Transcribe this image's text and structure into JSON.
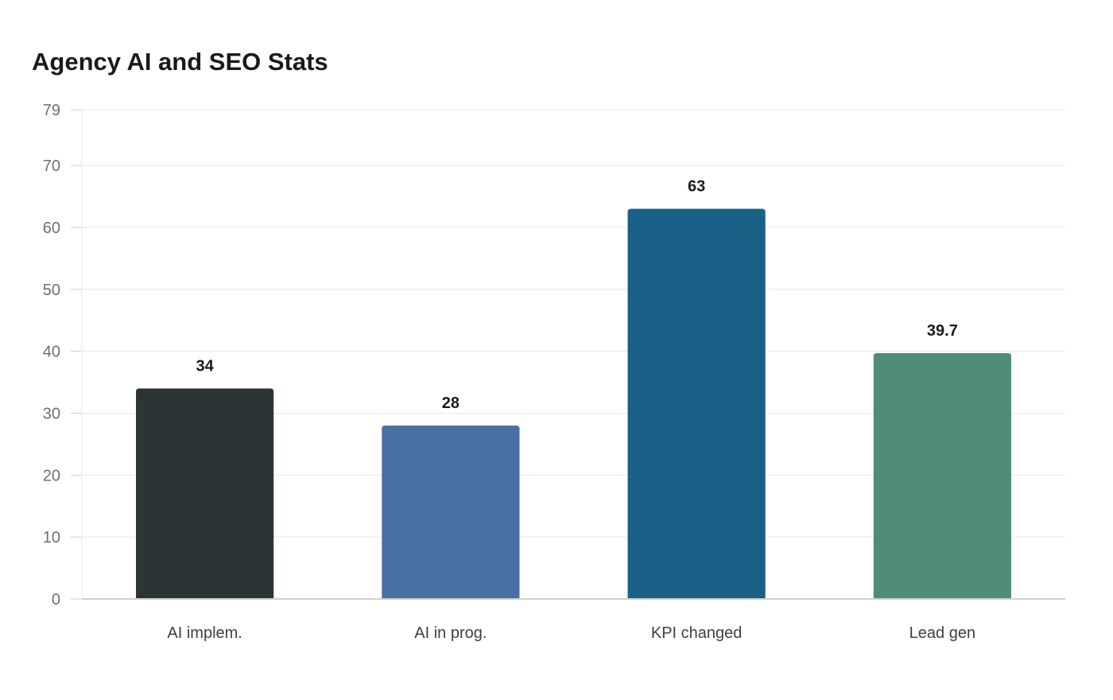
{
  "chart_data": {
    "type": "bar",
    "title": "Agency AI and SEO Stats",
    "categories": [
      "AI implem.",
      "AI in prog.",
      "KPI changed",
      "Lead gen"
    ],
    "values": [
      34,
      28,
      63,
      39.7
    ],
    "value_labels": [
      "34",
      "28",
      "63",
      "39.7"
    ],
    "colors": [
      "#2d3436",
      "#4a6fa5",
      "#186086",
      "#4e8c79"
    ],
    "xlabel": "",
    "ylabel": "",
    "ylim": [
      0,
      79
    ],
    "yticks": [
      0,
      10,
      20,
      30,
      40,
      50,
      60,
      70,
      79
    ],
    "grid": true
  }
}
